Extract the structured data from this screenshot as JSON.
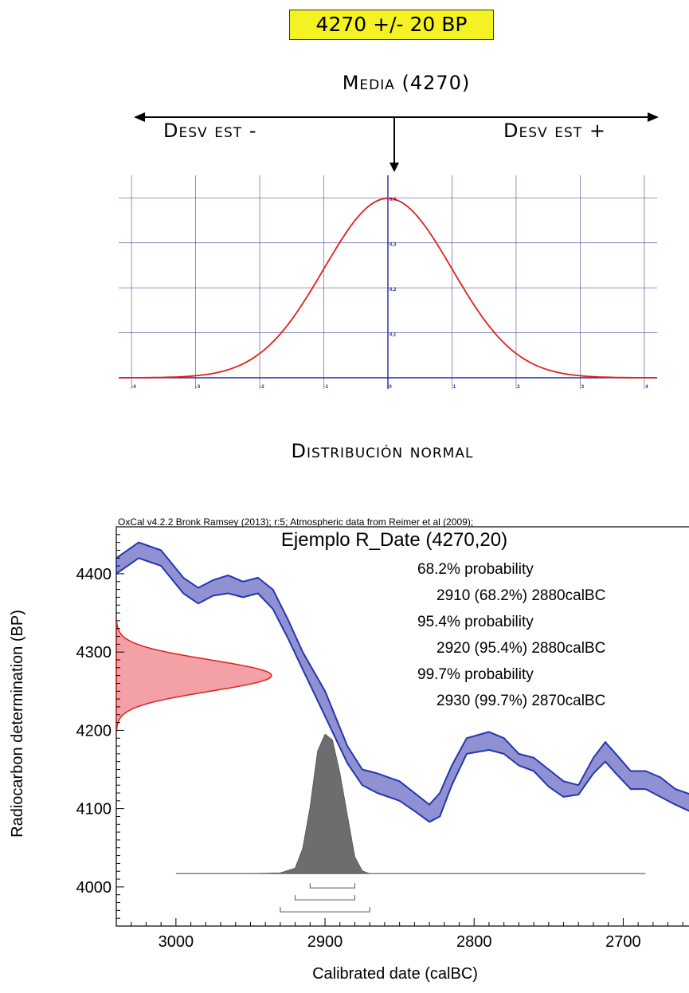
{
  "header": {
    "title": "4270 +/- 20 BP"
  },
  "normal": {
    "mean_label": "Media (4270)",
    "left_label": "Desv est -",
    "right_label": "Desv est +",
    "caption": "Distribución normal",
    "curve_color": "#e0201b",
    "grid_color": "#3b3b8f"
  },
  "oxcal": {
    "note": "OxCal v4.2.2 Bronk Ramsey (2013); r:5; Atmospheric data from Reimer et al (2009);",
    "band_color": "#8f91d3",
    "band_stroke": "#2436b0",
    "radiocarbon_color": "#f3a1a6",
    "posterior_color": "#6d6d70"
  },
  "chart_data": [
    {
      "type": "line",
      "series": [
        {
          "x": [
            -4,
            -3.5,
            -3,
            -2.5,
            -2,
            -1.5,
            -1,
            -0.5,
            0,
            0.5,
            1,
            1.5,
            2,
            2.5,
            3,
            3.5,
            4
          ],
          "y": [
            0.0001,
            0.0009,
            0.0044,
            0.0175,
            0.054,
            0.1295,
            0.242,
            0.352,
            0.399,
            0.352,
            0.242,
            0.1295,
            0.054,
            0.0175,
            0.0044,
            0.0009,
            0.0001
          ]
        }
      ],
      "xticks": [
        "-4",
        "-3",
        "-2",
        "-1",
        "0",
        "1",
        "2",
        "3",
        "4"
      ],
      "yticks": [
        "0,1",
        "0,2",
        "0,3",
        "0,4"
      ],
      "xlim": [
        -4.2,
        4.2
      ],
      "ylim": [
        0,
        0.45
      ],
      "grid": true
    },
    {
      "type": "area",
      "title": "Ejemplo R_Date (4270,20)",
      "xlabel": "Calibrated date (calBC)",
      "ylabel": "Radiocarbon determination (BP)",
      "xlim": [
        3040,
        2650
      ],
      "ylim": [
        3950,
        4460
      ],
      "xticks": [
        "3000",
        "2900",
        "2800",
        "2700"
      ],
      "yticks": [
        "4000",
        "4100",
        "4200",
        "4300",
        "4400"
      ],
      "annotations": [
        "68.2% probability",
        "2910 (68.2%) 2880calBC",
        "95.4% probability",
        "2920 (95.4%) 2880calBC",
        "99.7% probability",
        "2930 (99.7%) 2870calBC"
      ],
      "calibration_curve": {
        "x": [
          3040,
          3025,
          3010,
          2995,
          2985,
          2975,
          2965,
          2955,
          2945,
          2935,
          2925,
          2915,
          2900,
          2885,
          2875,
          2865,
          2850,
          2840,
          2830,
          2823,
          2815,
          2805,
          2790,
          2780,
          2770,
          2760,
          2750,
          2740,
          2730,
          2720,
          2712,
          2705,
          2695,
          2685,
          2675,
          2665,
          2650
        ],
        "upper": [
          4420,
          4440,
          4430,
          4395,
          4382,
          4392,
          4398,
          4390,
          4395,
          4380,
          4342,
          4300,
          4250,
          4180,
          4150,
          4145,
          4135,
          4120,
          4105,
          4120,
          4155,
          4190,
          4198,
          4190,
          4170,
          4165,
          4150,
          4135,
          4130,
          4165,
          4185,
          4170,
          4148,
          4148,
          4140,
          4125,
          4115
        ],
        "lower": [
          4400,
          4420,
          4410,
          4375,
          4362,
          4372,
          4375,
          4370,
          4375,
          4355,
          4318,
          4278,
          4218,
          4158,
          4130,
          4120,
          4110,
          4097,
          4083,
          4090,
          4130,
          4170,
          4175,
          4170,
          4155,
          4148,
          4128,
          4115,
          4118,
          4145,
          4160,
          4145,
          4125,
          4125,
          4115,
          4105,
          4092
        ]
      },
      "radiocarbon": {
        "mean": 4270,
        "sd": 20
      },
      "posterior": {
        "x": [
          3000,
          2950,
          2930,
          2920,
          2915,
          2910,
          2905,
          2900,
          2895,
          2890,
          2885,
          2880,
          2875,
          2870,
          2850,
          2800,
          2750,
          2685
        ],
        "y": [
          0,
          0,
          0.005,
          0.04,
          0.18,
          0.48,
          0.88,
          1.0,
          0.96,
          0.72,
          0.42,
          0.12,
          0.02,
          0,
          0,
          0,
          0,
          0
        ]
      },
      "ranges": [
        {
          "from": 2910,
          "to": 2880
        },
        {
          "from": 2920,
          "to": 2880
        },
        {
          "from": 2930,
          "to": 2870
        }
      ]
    }
  ]
}
